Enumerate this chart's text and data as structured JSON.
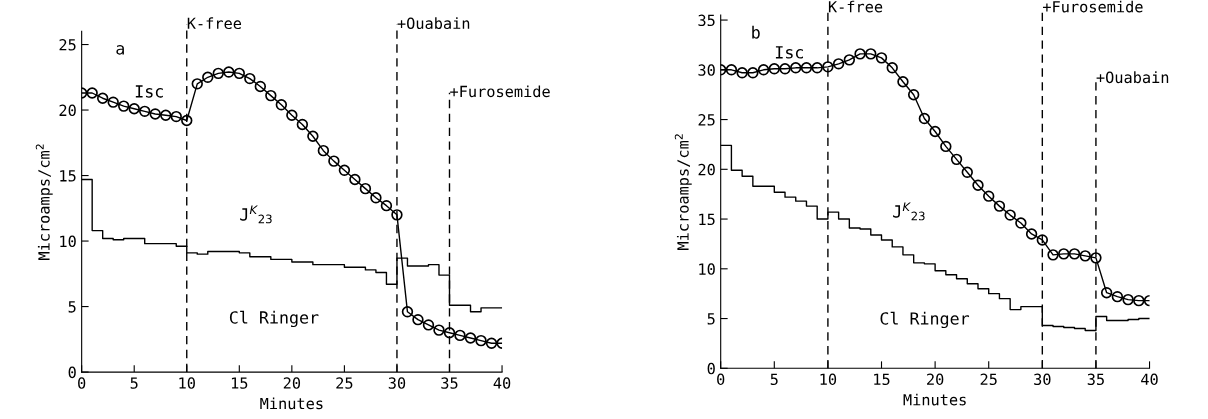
{
  "chart_data": [
    {
      "type": "line",
      "xlabel": "Minutes",
      "ylabel": "Microamps/cm$^{2}$",
      "xlim": [
        0,
        40
      ],
      "xticks": [
        0,
        5,
        10,
        15,
        20,
        25,
        30,
        35,
        40
      ],
      "ylim": [
        0,
        26
      ],
      "yticks": [
        0,
        5,
        10,
        15,
        20,
        25
      ],
      "grid": false,
      "legend": false,
      "annotations": [
        "a",
        "Cl Ringer"
      ],
      "ref_lines": [
        {
          "axis": "x",
          "value": 10,
          "label": "K-free",
          "color": "#000000",
          "line_style": "dashed"
        },
        {
          "axis": "x",
          "value": 30,
          "label": "+Ouabain",
          "color": "#000000",
          "line_style": "dashed"
        },
        {
          "axis": "x",
          "value": 35,
          "label": "+Furosemide",
          "color": "#000000",
          "line_style": "dashed"
        }
      ],
      "series": [
        {
          "name": "Isc",
          "marker": "circle",
          "line_style": "solid",
          "color": "#000000",
          "x": [
            0,
            1,
            2,
            3,
            4,
            5,
            6,
            7,
            8,
            9,
            10,
            11,
            12,
            13,
            14,
            15,
            16,
            17,
            18,
            19,
            20,
            21,
            22,
            23,
            24,
            25,
            26,
            27,
            28,
            29,
            30,
            31,
            32,
            33,
            34,
            35,
            36,
            37,
            38,
            39,
            40
          ],
          "values": [
            21.3,
            21.3,
            20.9,
            20.6,
            20.3,
            20.1,
            19.9,
            19.7,
            19.6,
            19.5,
            19.2,
            22.0,
            22.5,
            22.8,
            22.9,
            22.8,
            22.4,
            21.8,
            21.1,
            20.4,
            19.6,
            18.9,
            18.0,
            16.9,
            16.1,
            15.4,
            14.7,
            14.0,
            13.3,
            12.7,
            12.0,
            4.6,
            4.0,
            3.6,
            3.2,
            3.0,
            2.8,
            2.6,
            2.4,
            2.2,
            2.2
          ]
        },
        {
          "name": "J$^{K}$$_{23}$",
          "type": "step",
          "marker": "none",
          "line_style": "solid",
          "color": "#000000",
          "x": [
            0,
            1,
            2,
            3,
            4,
            5,
            6,
            7,
            8,
            9,
            10,
            11,
            12,
            13,
            14,
            15,
            16,
            17,
            18,
            19,
            20,
            21,
            22,
            23,
            24,
            25,
            26,
            27,
            28,
            29,
            30,
            31,
            32,
            33,
            34,
            35,
            36,
            37,
            38,
            39,
            40
          ],
          "values": [
            14.7,
            10.8,
            10.2,
            10.1,
            10.2,
            10.2,
            9.8,
            9.8,
            9.8,
            9.6,
            9.1,
            9.0,
            9.2,
            9.2,
            9.2,
            9.1,
            8.8,
            8.8,
            8.6,
            8.6,
            8.4,
            8.4,
            8.2,
            8.2,
            8.2,
            8.0,
            8.0,
            7.8,
            7.6,
            6.7,
            8.7,
            8.1,
            8.1,
            8.2,
            7.4,
            5.1,
            5.1,
            4.6,
            4.9,
            4.9,
            4.9
          ]
        }
      ]
    },
    {
      "type": "line",
      "xlabel": "Minutes",
      "ylabel": "Microamps/cm$^{2}$",
      "xlim": [
        0,
        40
      ],
      "xticks": [
        0,
        5,
        10,
        15,
        20,
        25,
        30,
        35,
        40
      ],
      "ylim": [
        0,
        35.5
      ],
      "yticks": [
        0,
        5,
        10,
        15,
        20,
        25,
        30,
        35
      ],
      "grid": false,
      "legend": false,
      "annotations": [
        "b",
        "Cl Ringer"
      ],
      "ref_lines": [
        {
          "axis": "x",
          "value": 10,
          "label": "K-free",
          "color": "#000000",
          "line_style": "dashed"
        },
        {
          "axis": "x",
          "value": 30,
          "label": "+Furosemide",
          "color": "#000000",
          "line_style": "dashed"
        },
        {
          "axis": "x",
          "value": 35,
          "label": "+Ouabain",
          "color": "#000000",
          "line_style": "dashed"
        }
      ],
      "series": [
        {
          "name": "Isc",
          "marker": "circle",
          "line_style": "solid",
          "color": "#000000",
          "x": [
            0,
            1,
            2,
            3,
            4,
            5,
            6,
            7,
            8,
            9,
            10,
            11,
            12,
            13,
            14,
            15,
            16,
            17,
            18,
            19,
            20,
            21,
            22,
            23,
            24,
            25,
            26,
            27,
            28,
            29,
            30,
            31,
            32,
            33,
            34,
            35,
            36,
            37,
            38,
            39,
            40
          ],
          "values": [
            30.0,
            30.0,
            29.7,
            29.7,
            30.0,
            30.1,
            30.1,
            30.2,
            30.2,
            30.2,
            30.3,
            30.6,
            31.0,
            31.6,
            31.6,
            31.2,
            30.2,
            28.8,
            27.5,
            25.1,
            23.8,
            22.3,
            21.0,
            19.7,
            18.4,
            17.3,
            16.3,
            15.4,
            14.6,
            13.5,
            12.9,
            11.4,
            11.5,
            11.5,
            11.3,
            11.1,
            7.6,
            7.2,
            6.9,
            6.8,
            6.8
          ]
        },
        {
          "name": "J$^{K}$$_{23}$",
          "type": "step",
          "marker": "none",
          "line_style": "solid",
          "color": "#000000",
          "x": [
            0,
            1,
            2,
            3,
            4,
            5,
            6,
            7,
            8,
            9,
            10,
            11,
            12,
            13,
            14,
            15,
            16,
            17,
            18,
            19,
            20,
            21,
            22,
            23,
            24,
            25,
            26,
            27,
            28,
            29,
            30,
            31,
            32,
            33,
            34,
            35,
            36,
            37,
            38,
            39,
            40
          ],
          "values": [
            22.4,
            19.9,
            19.3,
            18.3,
            18.3,
            17.7,
            17.2,
            16.8,
            16.3,
            15.0,
            15.7,
            15.0,
            14.1,
            14.0,
            13.4,
            12.9,
            12.2,
            11.4,
            10.6,
            10.5,
            9.8,
            9.4,
            9.0,
            8.5,
            8.0,
            7.5,
            7.0,
            5.9,
            6.2,
            6.2,
            4.3,
            4.2,
            4.1,
            4.0,
            3.8,
            5.2,
            4.8,
            4.8,
            4.9,
            5.0,
            5.0
          ]
        }
      ]
    }
  ]
}
